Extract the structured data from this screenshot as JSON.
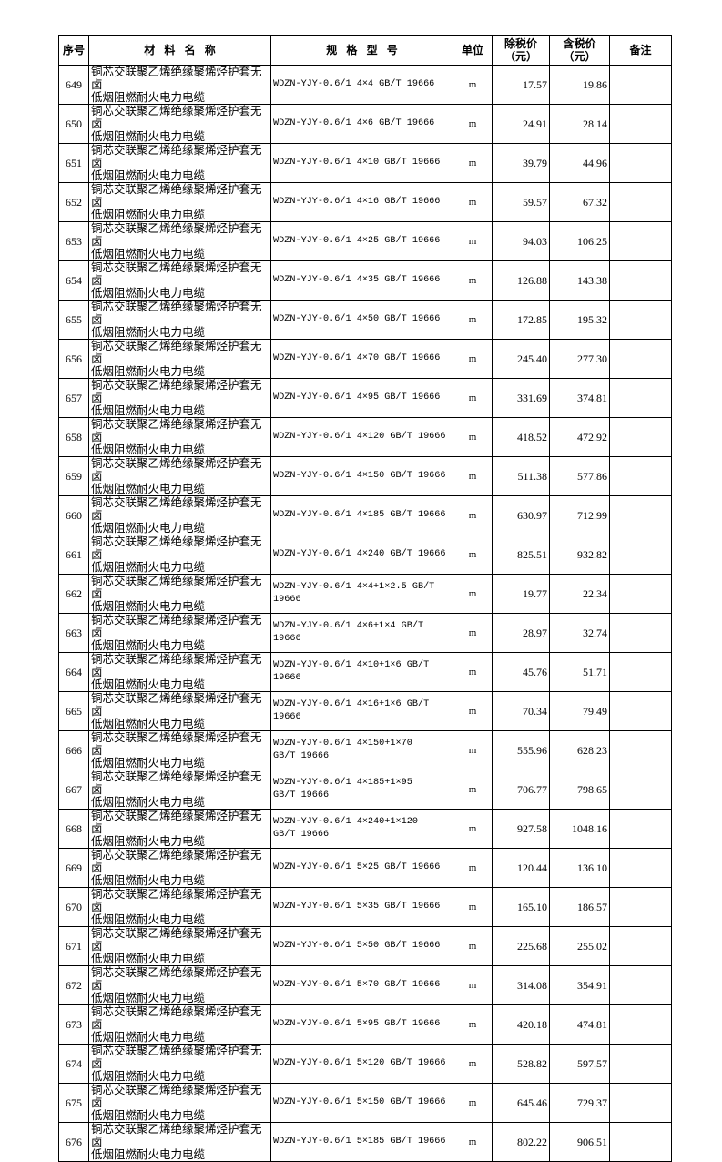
{
  "header": {
    "no": "序号",
    "name": "材 料 名 称",
    "spec": "规 格 型 号",
    "unit": "单位",
    "price_ex_tax": "除税价\n（元）",
    "price_inc_tax": "含税价\n（元）",
    "remark": "备注"
  },
  "rows": [
    {
      "no": "649",
      "name": "铜芯交联聚乙烯绝缘聚烯烃护套无卤\n低烟阻燃耐火电力电缆",
      "spec": "WDZN-YJY-0.6/1 4×4 GB/T 19666",
      "unit": "m",
      "ex": "17.57",
      "inc": "19.86",
      "remark": ""
    },
    {
      "no": "650",
      "name": "铜芯交联聚乙烯绝缘聚烯烃护套无卤\n低烟阻燃耐火电力电缆",
      "spec": "WDZN-YJY-0.6/1 4×6 GB/T 19666",
      "unit": "m",
      "ex": "24.91",
      "inc": "28.14",
      "remark": ""
    },
    {
      "no": "651",
      "name": "铜芯交联聚乙烯绝缘聚烯烃护套无卤\n低烟阻燃耐火电力电缆",
      "spec": "WDZN-YJY-0.6/1 4×10 GB/T 19666",
      "unit": "m",
      "ex": "39.79",
      "inc": "44.96",
      "remark": ""
    },
    {
      "no": "652",
      "name": "铜芯交联聚乙烯绝缘聚烯烃护套无卤\n低烟阻燃耐火电力电缆",
      "spec": "WDZN-YJY-0.6/1 4×16 GB/T 19666",
      "unit": "m",
      "ex": "59.57",
      "inc": "67.32",
      "remark": ""
    },
    {
      "no": "653",
      "name": "铜芯交联聚乙烯绝缘聚烯烃护套无卤\n低烟阻燃耐火电力电缆",
      "spec": "WDZN-YJY-0.6/1 4×25 GB/T 19666",
      "unit": "m",
      "ex": "94.03",
      "inc": "106.25",
      "remark": ""
    },
    {
      "no": "654",
      "name": "铜芯交联聚乙烯绝缘聚烯烃护套无卤\n低烟阻燃耐火电力电缆",
      "spec": "WDZN-YJY-0.6/1 4×35 GB/T 19666",
      "unit": "m",
      "ex": "126.88",
      "inc": "143.38",
      "remark": ""
    },
    {
      "no": "655",
      "name": "铜芯交联聚乙烯绝缘聚烯烃护套无卤\n低烟阻燃耐火电力电缆",
      "spec": "WDZN-YJY-0.6/1 4×50 GB/T 19666",
      "unit": "m",
      "ex": "172.85",
      "inc": "195.32",
      "remark": ""
    },
    {
      "no": "656",
      "name": "铜芯交联聚乙烯绝缘聚烯烃护套无卤\n低烟阻燃耐火电力电缆",
      "spec": "WDZN-YJY-0.6/1 4×70 GB/T 19666",
      "unit": "m",
      "ex": "245.40",
      "inc": "277.30",
      "remark": ""
    },
    {
      "no": "657",
      "name": "铜芯交联聚乙烯绝缘聚烯烃护套无卤\n低烟阻燃耐火电力电缆",
      "spec": "WDZN-YJY-0.6/1 4×95 GB/T 19666",
      "unit": "m",
      "ex": "331.69",
      "inc": "374.81",
      "remark": ""
    },
    {
      "no": "658",
      "name": "铜芯交联聚乙烯绝缘聚烯烃护套无卤\n低烟阻燃耐火电力电缆",
      "spec": "WDZN-YJY-0.6/1 4×120 GB/T 19666",
      "unit": "m",
      "ex": "418.52",
      "inc": "472.92",
      "remark": ""
    },
    {
      "no": "659",
      "name": "铜芯交联聚乙烯绝缘聚烯烃护套无卤\n低烟阻燃耐火电力电缆",
      "spec": "WDZN-YJY-0.6/1 4×150 GB/T 19666",
      "unit": "m",
      "ex": "511.38",
      "inc": "577.86",
      "remark": ""
    },
    {
      "no": "660",
      "name": "铜芯交联聚乙烯绝缘聚烯烃护套无卤\n低烟阻燃耐火电力电缆",
      "spec": "WDZN-YJY-0.6/1 4×185 GB/T 19666",
      "unit": "m",
      "ex": "630.97",
      "inc": "712.99",
      "remark": ""
    },
    {
      "no": "661",
      "name": "铜芯交联聚乙烯绝缘聚烯烃护套无卤\n低烟阻燃耐火电力电缆",
      "spec": "WDZN-YJY-0.6/1 4×240 GB/T 19666",
      "unit": "m",
      "ex": "825.51",
      "inc": "932.82",
      "remark": ""
    },
    {
      "no": "662",
      "name": "铜芯交联聚乙烯绝缘聚烯烃护套无卤\n低烟阻燃耐火电力电缆",
      "spec": "WDZN-YJY-0.6/1 4×4+1×2.5  GB/T\n19666",
      "unit": "m",
      "ex": "19.77",
      "inc": "22.34",
      "remark": ""
    },
    {
      "no": "663",
      "name": "铜芯交联聚乙烯绝缘聚烯烃护套无卤\n低烟阻燃耐火电力电缆",
      "spec": "WDZN-YJY-0.6/1 4×6+1×4  GB/T\n19666",
      "unit": "m",
      "ex": "28.97",
      "inc": "32.74",
      "remark": ""
    },
    {
      "no": "664",
      "name": "铜芯交联聚乙烯绝缘聚烯烃护套无卤\n低烟阻燃耐火电力电缆",
      "spec": "WDZN-YJY-0.6/1 4×10+1×6  GB/T\n19666",
      "unit": "m",
      "ex": "45.76",
      "inc": "51.71",
      "remark": ""
    },
    {
      "no": "665",
      "name": "铜芯交联聚乙烯绝缘聚烯烃护套无卤\n低烟阻燃耐火电力电缆",
      "spec": "WDZN-YJY-0.6/1 4×16+1×6  GB/T\n19666",
      "unit": "m",
      "ex": "70.34",
      "inc": "79.49",
      "remark": ""
    },
    {
      "no": "666",
      "name": "铜芯交联聚乙烯绝缘聚烯烃护套无卤\n低烟阻燃耐火电力电缆",
      "spec": "WDZN-YJY-0.6/1 4×150+1×70\nGB/T 19666",
      "unit": "m",
      "ex": "555.96",
      "inc": "628.23",
      "remark": ""
    },
    {
      "no": "667",
      "name": "铜芯交联聚乙烯绝缘聚烯烃护套无卤\n低烟阻燃耐火电力电缆",
      "spec": "WDZN-YJY-0.6/1 4×185+1×95\nGB/T 19666",
      "unit": "m",
      "ex": "706.77",
      "inc": "798.65",
      "remark": ""
    },
    {
      "no": "668",
      "name": "铜芯交联聚乙烯绝缘聚烯烃护套无卤\n低烟阻燃耐火电力电缆",
      "spec": "WDZN-YJY-0.6/1 4×240+1×120\nGB/T 19666",
      "unit": "m",
      "ex": "927.58",
      "inc": "1048.16",
      "remark": ""
    },
    {
      "no": "669",
      "name": "铜芯交联聚乙烯绝缘聚烯烃护套无卤\n低烟阻燃耐火电力电缆",
      "spec": "WDZN-YJY-0.6/1 5×25 GB/T 19666",
      "unit": "m",
      "ex": "120.44",
      "inc": "136.10",
      "remark": ""
    },
    {
      "no": "670",
      "name": "铜芯交联聚乙烯绝缘聚烯烃护套无卤\n低烟阻燃耐火电力电缆",
      "spec": "WDZN-YJY-0.6/1 5×35 GB/T 19666",
      "unit": "m",
      "ex": "165.10",
      "inc": "186.57",
      "remark": ""
    },
    {
      "no": "671",
      "name": "铜芯交联聚乙烯绝缘聚烯烃护套无卤\n低烟阻燃耐火电力电缆",
      "spec": "WDZN-YJY-0.6/1 5×50 GB/T 19666",
      "unit": "m",
      "ex": "225.68",
      "inc": "255.02",
      "remark": ""
    },
    {
      "no": "672",
      "name": "铜芯交联聚乙烯绝缘聚烯烃护套无卤\n低烟阻燃耐火电力电缆",
      "spec": "WDZN-YJY-0.6/1 5×70 GB/T 19666",
      "unit": "m",
      "ex": "314.08",
      "inc": "354.91",
      "remark": ""
    },
    {
      "no": "673",
      "name": "铜芯交联聚乙烯绝缘聚烯烃护套无卤\n低烟阻燃耐火电力电缆",
      "spec": "WDZN-YJY-0.6/1 5×95 GB/T 19666",
      "unit": "m",
      "ex": "420.18",
      "inc": "474.81",
      "remark": ""
    },
    {
      "no": "674",
      "name": "铜芯交联聚乙烯绝缘聚烯烃护套无卤\n低烟阻燃耐火电力电缆",
      "spec": "WDZN-YJY-0.6/1 5×120 GB/T 19666",
      "unit": "m",
      "ex": "528.82",
      "inc": "597.57",
      "remark": ""
    },
    {
      "no": "675",
      "name": "铜芯交联聚乙烯绝缘聚烯烃护套无卤\n低烟阻燃耐火电力电缆",
      "spec": "WDZN-YJY-0.6/1 5×150 GB/T 19666",
      "unit": "m",
      "ex": "645.46",
      "inc": "729.37",
      "remark": ""
    },
    {
      "no": "676",
      "name": "铜芯交联聚乙烯绝缘聚烯烃护套无卤\n低烟阻燃耐火电力电缆",
      "spec": "WDZN-YJY-0.6/1 5×185 GB/T 19666",
      "unit": "m",
      "ex": "802.22",
      "inc": "906.51",
      "remark": ""
    }
  ]
}
